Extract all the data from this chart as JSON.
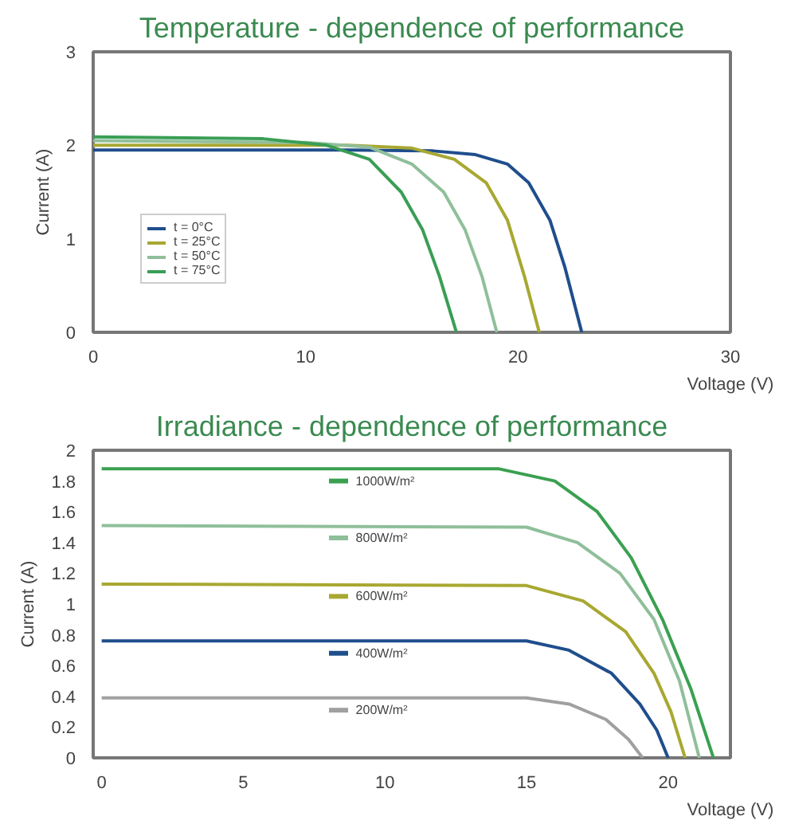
{
  "chart_data": [
    {
      "type": "line",
      "title": "Temperature - dependence of performance",
      "xlabel": "Voltage (V)",
      "ylabel": "Current (A)",
      "xlim": [
        0,
        30
      ],
      "ylim": [
        0,
        3
      ],
      "xticks": [
        0,
        10,
        20,
        30
      ],
      "yticks": [
        0,
        1,
        2,
        3
      ],
      "grid": false,
      "legend": "bottom left",
      "series": [
        {
          "name": "t = 0°C",
          "color": "#1f4e8c",
          "x": [
            0,
            12,
            16,
            18,
            19.5,
            20.5,
            21.5,
            22.2,
            23
          ],
          "values": [
            1.95,
            1.95,
            1.94,
            1.9,
            1.8,
            1.6,
            1.2,
            0.7,
            0
          ]
        },
        {
          "name": "t = 25°C",
          "color": "#a8a832",
          "x": [
            0,
            12,
            15,
            17,
            18.5,
            19.5,
            20.3,
            21
          ],
          "values": [
            2.0,
            2.0,
            1.97,
            1.85,
            1.6,
            1.2,
            0.6,
            0
          ]
        },
        {
          "name": "t = 50°C",
          "color": "#8fbf9a",
          "x": [
            0,
            10,
            13,
            15,
            16.5,
            17.5,
            18.3,
            19
          ],
          "values": [
            2.05,
            2.03,
            1.98,
            1.8,
            1.5,
            1.1,
            0.6,
            0
          ]
        },
        {
          "name": "t = 75°C",
          "color": "#3a9e55",
          "x": [
            0,
            8,
            11,
            13,
            14.5,
            15.5,
            16.3,
            17.1
          ],
          "values": [
            2.09,
            2.07,
            2.0,
            1.85,
            1.5,
            1.1,
            0.6,
            0
          ]
        }
      ]
    },
    {
      "type": "line",
      "title": "Irradiance - dependence of performance",
      "xlabel": "Voltage (V)",
      "ylabel": "Current (A)",
      "xlim": [
        -0.3,
        22.2
      ],
      "ylim": [
        0,
        2
      ],
      "xticks": [
        0,
        5,
        10,
        15,
        20
      ],
      "yticks": [
        0,
        0.2,
        0.4,
        0.6,
        0.8,
        1,
        1.2,
        1.4,
        1.6,
        1.8,
        2
      ],
      "grid": false,
      "legend": "center",
      "series": [
        {
          "name": "1000W/m²",
          "color": "#3aa050",
          "x": [
            0,
            14,
            16,
            17.5,
            18.7,
            19.8,
            20.8,
            21.6
          ],
          "values": [
            1.88,
            1.88,
            1.8,
            1.6,
            1.3,
            0.9,
            0.45,
            0
          ]
        },
        {
          "name": "800W/m²",
          "color": "#8fbf9a",
          "x": [
            0,
            15,
            16.8,
            18.3,
            19.5,
            20.4,
            21.1
          ],
          "values": [
            1.51,
            1.5,
            1.4,
            1.2,
            0.9,
            0.5,
            0
          ]
        },
        {
          "name": "600W/m²",
          "color": "#a8a832",
          "x": [
            0,
            15,
            17,
            18.5,
            19.5,
            20.1,
            20.6
          ],
          "values": [
            1.13,
            1.12,
            1.02,
            0.82,
            0.55,
            0.3,
            0
          ]
        },
        {
          "name": "400W/m²",
          "color": "#1f4e8c",
          "x": [
            0,
            15,
            16.5,
            18,
            19,
            19.6,
            20
          ],
          "values": [
            0.76,
            0.76,
            0.7,
            0.55,
            0.35,
            0.18,
            0
          ]
        },
        {
          "name": "200W/m²",
          "color": "#a0a0a0",
          "x": [
            0,
            15,
            16.5,
            17.8,
            18.6,
            19.1
          ],
          "values": [
            0.39,
            0.39,
            0.35,
            0.25,
            0.12,
            0
          ]
        }
      ]
    }
  ]
}
